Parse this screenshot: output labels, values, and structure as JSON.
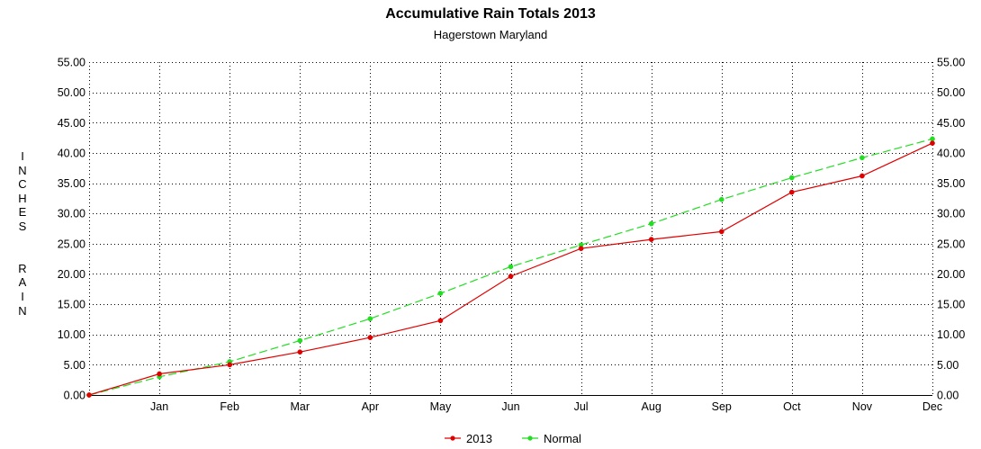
{
  "chart_data": {
    "type": "line",
    "title": "Accumulative Rain Totals 2013",
    "subtitle": "Hagerstown Maryland",
    "ylabel": "INCHES  RAIN",
    "xlabel": "",
    "categories": [
      "",
      "Jan",
      "Feb",
      "Mar",
      "Apr",
      "May",
      "Jun",
      "Jul",
      "Aug",
      "Sep",
      "Oct",
      "Nov",
      "Dec"
    ],
    "ylim": [
      0,
      55
    ],
    "yticks": [
      "0.00",
      "5.00",
      "10.00",
      "15.00",
      "20.00",
      "25.00",
      "30.00",
      "35.00",
      "40.00",
      "45.00",
      "50.00",
      "55.00"
    ],
    "grid": true,
    "legend_position": "bottom",
    "series": [
      {
        "name": "2013",
        "color": "#e00000",
        "line_style": "solid",
        "values": [
          0.0,
          3.5,
          5.0,
          7.1,
          9.5,
          12.3,
          19.6,
          24.2,
          25.7,
          27.0,
          33.5,
          36.2,
          41.6
        ]
      },
      {
        "name": "Normal",
        "color": "#22dd22",
        "line_style": "dashed",
        "values": [
          0.0,
          3.0,
          5.5,
          9.0,
          12.6,
          16.8,
          21.2,
          24.8,
          28.3,
          32.3,
          35.9,
          39.2,
          42.3
        ]
      }
    ]
  }
}
